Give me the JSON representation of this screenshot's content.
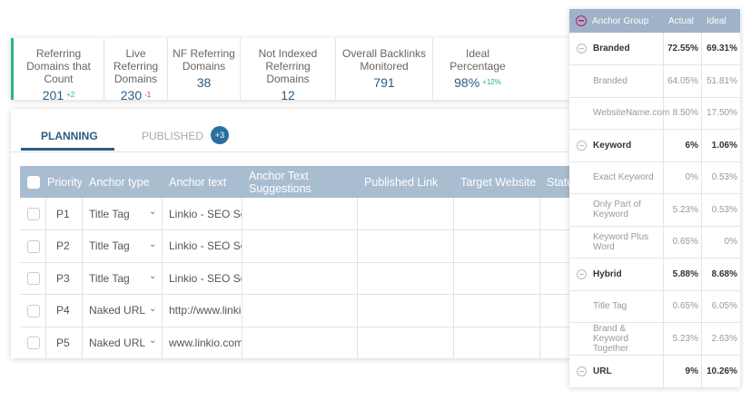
{
  "stats": [
    {
      "label": "Referring Domains that Count",
      "value": "201",
      "delta": "+2"
    },
    {
      "label": "Live Referring Domains",
      "value": "230",
      "delta": "-1"
    },
    {
      "label": "NF Referring Domains",
      "value": "38"
    },
    {
      "label": "Not Indexed Referring Domains",
      "value": "12"
    },
    {
      "label": "Overall Backlinks Monitored",
      "value": "791"
    },
    {
      "label": "Ideal Percentage",
      "value": "98%",
      "delta": "+12%"
    }
  ],
  "tabs": {
    "items": [
      "PLANNING",
      "PUBLISHED"
    ],
    "badge": "+3"
  },
  "table": {
    "headers": [
      "Priority",
      "Anchor type",
      "Anchor text",
      "Anchor Text Suggestions",
      "Published Link",
      "Target Website",
      "Status"
    ],
    "rows": [
      [
        "P1",
        "Title Tag",
        "Linkio - SEO Softwar..."
      ],
      [
        "P2",
        "Title Tag",
        "Linkio - SEO Softwar..."
      ],
      [
        "P3",
        "Title Tag",
        "Linkio - SEO Softwar..."
      ],
      [
        "P4",
        "Naked URL",
        "http://www.linkio.com"
      ],
      [
        "P5",
        "Naked URL",
        "www.linkio.com"
      ]
    ]
  },
  "panel": {
    "headers": [
      "Anchor Group",
      "Actual",
      "Ideal"
    ],
    "rows": [
      {
        "label": "Branded",
        "actual": "72.55%",
        "ideal": "69.31%",
        "group": true
      },
      {
        "label": "Branded",
        "actual": "64.05%",
        "ideal": "51.81%"
      },
      {
        "label": "WebsiteName.com",
        "actual": "8.50%",
        "ideal": "17.50%"
      },
      {
        "label": "Keyword",
        "actual": "6%",
        "ideal": "1.06%",
        "group": true
      },
      {
        "label": "Exact Keyword",
        "actual": "0%",
        "ideal": "0.53%"
      },
      {
        "label": "Only Part of Keyword",
        "actual": "5.23%",
        "ideal": "0.53%"
      },
      {
        "label": "Keyword Plus Word",
        "actual": "0.65%",
        "ideal": "0%"
      },
      {
        "label": "Hybrid",
        "actual": "5.88%",
        "ideal": "8.68%",
        "group": true
      },
      {
        "label": "Title Tag",
        "actual": "0.65%",
        "ideal": "6.05%"
      },
      {
        "label": "Brand & Keyword Together",
        "actual": "5.23%",
        "ideal": "2.63%"
      },
      {
        "label": "URL",
        "actual": "9%",
        "ideal": "10.26%",
        "group": true
      }
    ]
  }
}
